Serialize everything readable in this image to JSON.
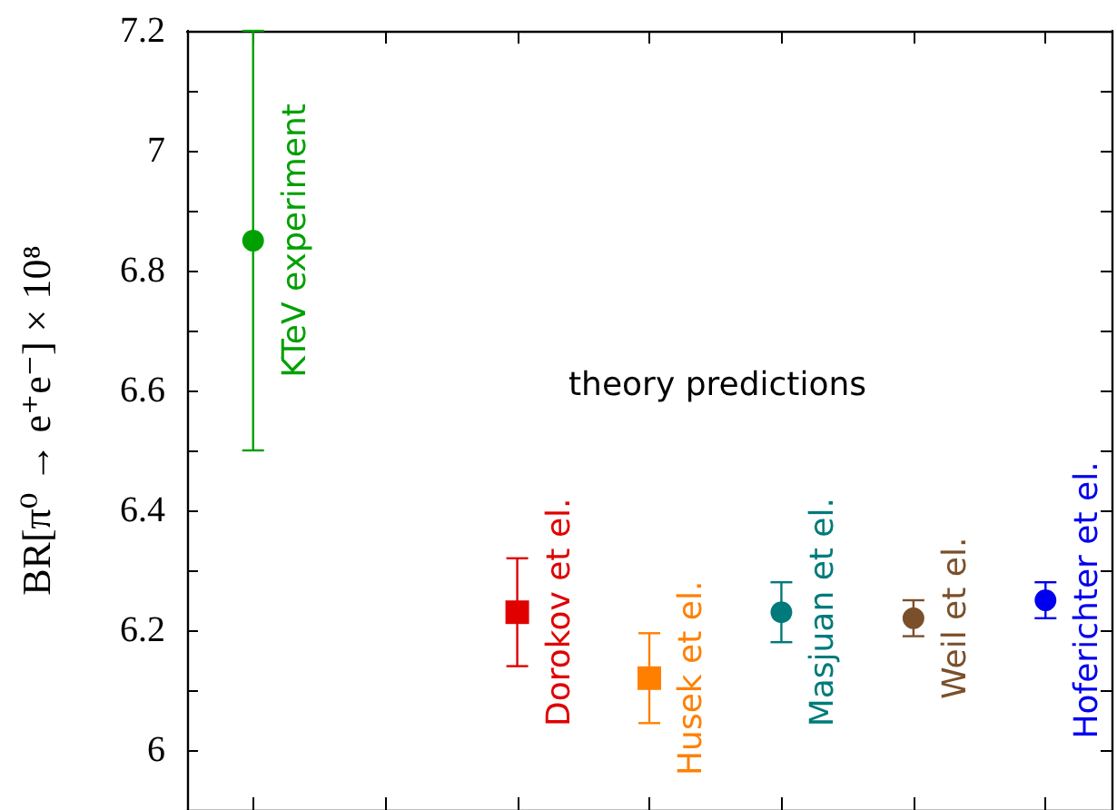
{
  "chart_data": {
    "type": "scatter",
    "ylabel": "BR[π⁰ → e⁺e⁻] × 10⁸",
    "categories": [
      null,
      null,
      null,
      null,
      null,
      null,
      null
    ],
    "ylim": [
      5.9,
      7.2
    ],
    "yticks": [
      {
        "value": 5.9,
        "label": null
      },
      6,
      {
        "value": 6.1,
        "label": null
      },
      6.2,
      {
        "value": 6.3,
        "label": null
      },
      6.4,
      {
        "value": 6.5,
        "label": null
      },
      6.6,
      {
        "value": 6.7,
        "label": null
      },
      6.8,
      {
        "value": 6.9,
        "label": null
      },
      7,
      {
        "value": 7.1,
        "label": null
      },
      7.2
    ],
    "grid": false,
    "legend": false,
    "tick_labels": "y",
    "annotations": [
      "theory predictions"
    ],
    "series": [
      {
        "name": "KTeV experiment",
        "color": "#00a000",
        "marker": "circle",
        "values": [
          6.85,
          null,
          null,
          null,
          null,
          null,
          null
        ],
        "errors": [
          0.35,
          null,
          null,
          null,
          null,
          null,
          null
        ]
      },
      {
        "name": "Dorokov et el.",
        "color": "#e00000",
        "marker": "square",
        "values": [
          null,
          null,
          6.23,
          null,
          null,
          null,
          null
        ],
        "errors": [
          null,
          null,
          0.09,
          null,
          null,
          null,
          null
        ]
      },
      {
        "name": "Husek et el.",
        "color": "#ff8000",
        "marker": "square",
        "values": [
          null,
          null,
          null,
          6.12,
          null,
          null,
          null
        ],
        "errors": [
          null,
          null,
          null,
          0.075,
          null,
          null,
          null
        ]
      },
      {
        "name": "Masjuan et el.",
        "color": "#007a7a",
        "marker": "circle",
        "values": [
          null,
          null,
          null,
          null,
          6.23,
          null,
          null
        ],
        "errors": [
          null,
          null,
          null,
          null,
          0.05,
          null,
          null
        ]
      },
      {
        "name": "Weil et el.",
        "color": "#7a4f2a",
        "marker": "circle",
        "values": [
          null,
          null,
          null,
          null,
          null,
          6.22,
          null
        ],
        "errors": [
          null,
          null,
          null,
          null,
          null,
          0.03,
          null
        ]
      },
      {
        "name": "Hoferichter et el.",
        "color": "#0000ee",
        "marker": "circle",
        "values": [
          null,
          null,
          null,
          null,
          null,
          null,
          6.25
        ],
        "errors": [
          null,
          null,
          null,
          null,
          null,
          null,
          0.03
        ]
      }
    ]
  }
}
